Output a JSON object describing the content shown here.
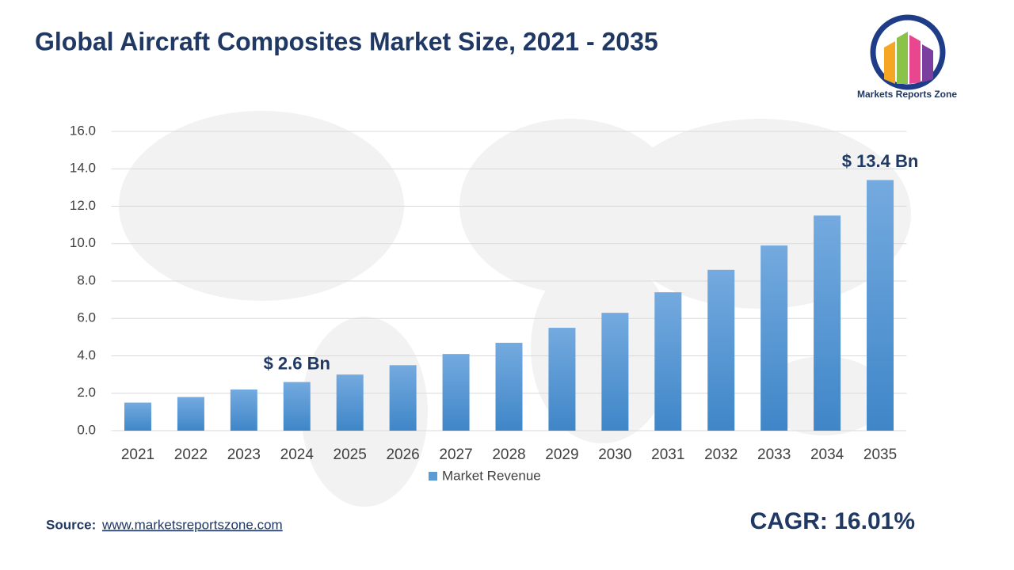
{
  "chart_data": {
    "type": "bar",
    "title": "Global Aircraft Composites Market Size, 2021 - 2035",
    "categories": [
      "2021",
      "2022",
      "2023",
      "2024",
      "2025",
      "2026",
      "2027",
      "2028",
      "2029",
      "2030",
      "2031",
      "2032",
      "2033",
      "2034",
      "2035"
    ],
    "series": [
      {
        "name": "Market Revenue",
        "color": "#5b9bd5",
        "values": [
          1.5,
          1.8,
          2.2,
          2.6,
          3.0,
          3.5,
          4.1,
          4.7,
          5.5,
          6.3,
          7.4,
          8.6,
          9.9,
          11.5,
          13.4
        ],
        "value_labels": [
          null,
          null,
          null,
          "$ 2.6 Bn",
          null,
          null,
          null,
          null,
          null,
          null,
          null,
          null,
          null,
          null,
          "$ 13.4 Bn"
        ]
      }
    ],
    "ylim": [
      0,
      16
    ],
    "yticks": [
      {
        "value": 0,
        "label": "0.0"
      },
      {
        "value": 2,
        "label": "2.0"
      },
      {
        "value": 4,
        "label": "4.0"
      },
      {
        "value": 6,
        "label": "6.0"
      },
      {
        "value": 8,
        "label": "8.0"
      },
      {
        "value": 10,
        "label": "10.0"
      },
      {
        "value": 12,
        "label": "12.0"
      },
      {
        "value": 14,
        "label": "14.0"
      },
      {
        "value": 16,
        "label": "16.0"
      }
    ],
    "grid": true,
    "legend": "bottom"
  },
  "source_label": "Source:",
  "source_url": "www.marketsreportszone.com",
  "cagr": "CAGR: 16.01%",
  "logo_text": "Markets Reports Zone"
}
